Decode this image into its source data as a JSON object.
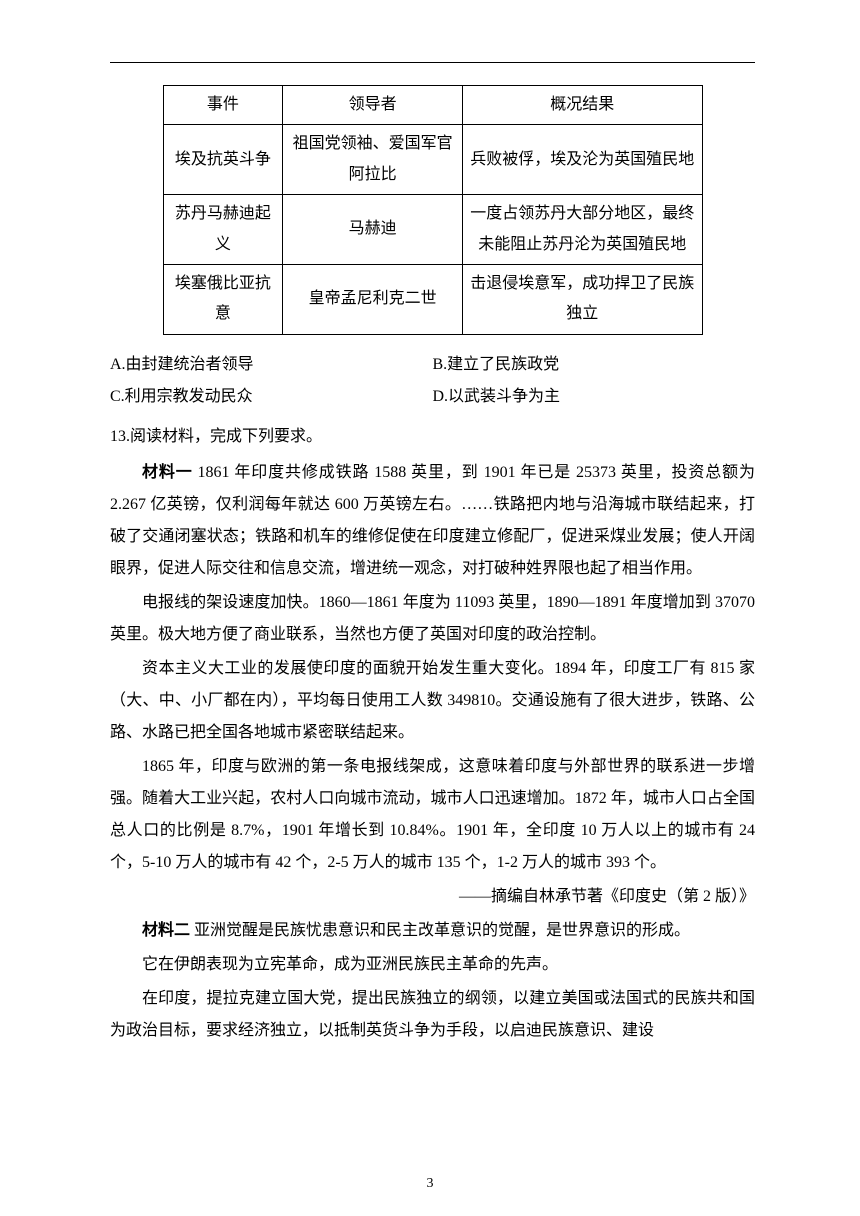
{
  "table": {
    "headers": {
      "c1": "事件",
      "c2": "领导者",
      "c3": "概况结果"
    },
    "rows": [
      {
        "c1": "埃及抗英斗争",
        "c2": "祖国党领袖、爱国军官阿拉比",
        "c3": "兵败被俘，埃及沦为英国殖民地"
      },
      {
        "c1": "苏丹马赫迪起义",
        "c2": "马赫迪",
        "c3": "一度占领苏丹大部分地区，最终未能阻止苏丹沦为英国殖民地"
      },
      {
        "c1": "埃塞俄比亚抗意",
        "c2": "皇帝孟尼利克二世",
        "c3": "击退侵埃意军，成功捍卫了民族独立"
      }
    ]
  },
  "options": {
    "a": "A.由封建统治者领导",
    "b": "B.建立了民族政党",
    "c": "C.利用宗教发动民众",
    "d": "D.以武装斗争为主"
  },
  "q13": "13.阅读材料，完成下列要求。",
  "m1label": "材料一",
  "m1p1rest": "  1861 年印度共修成铁路 1588 英里，到 1901 年已是 25373 英里，投资总额为 2.267 亿英镑，仅利润每年就达 600 万英镑左右。……铁路把内地与沿海城市联结起来，打破了交通闭塞状态；铁路和机车的维修促使在印度建立修配厂，促进采煤业发展；使人开阔眼界，促进人际交往和信息交流，增进统一观念，对打破种姓界限也起了相当作用。",
  "m1p2": "电报线的架设速度加快。1860—1861 年度为 11093 英里，1890—1891 年度增加到 37070 英里。极大地方便了商业联系，当然也方便了英国对印度的政治控制。",
  "m1p3": "资本主义大工业的发展使印度的面貌开始发生重大变化。1894 年，印度工厂有 815 家（大、中、小厂都在内），平均每日使用工人数 349810。交通设施有了很大进步，铁路、公路、水路已把全国各地城市紧密联结起来。",
  "m1p4": "1865 年，印度与欧洲的第一条电报线架成，这意味着印度与外部世界的联系进一步增强。随着大工业兴起，农村人口向城市流动，城市人口迅速增加。1872 年，城市人口占全国总人口的比例是 8.7%，1901 年增长到 10.84%。1901 年，全印度 10 万人以上的城市有 24 个，5-10 万人的城市有 42 个，2-5 万人的城市 135 个，1-2 万人的城市 393 个。",
  "m1src": "——摘编自林承节著《印度史（第 2 版）》",
  "m2label": "材料二",
  "m2p1rest": "  亚洲觉醒是民族忧患意识和民主改革意识的觉醒，是世界意识的形成。",
  "m2p2": "它在伊朗表现为立宪革命，成为亚洲民族民主革命的先声。",
  "m2p3": "在印度，提拉克建立国大党，提出民族独立的纲领，以建立美国或法国式的民族共和国为政治目标，要求经济独立，以抵制英货斗争为手段，以启迪民族意识、建设",
  "pageNum": "3"
}
